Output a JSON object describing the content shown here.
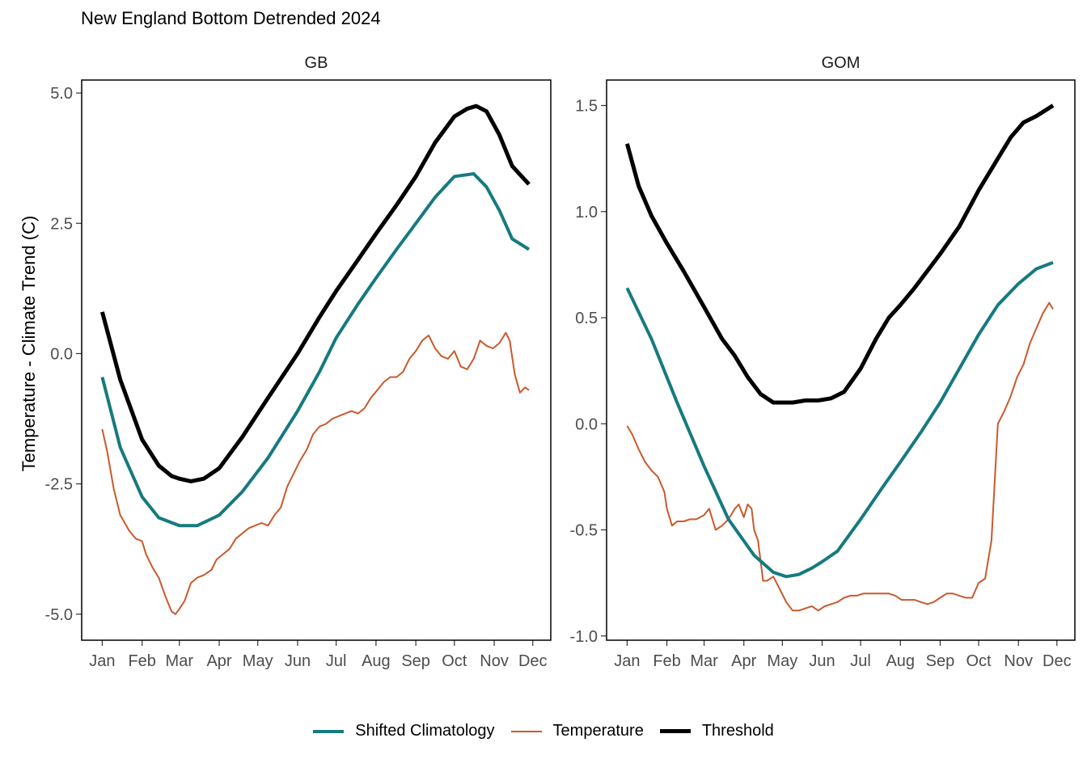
{
  "chart_data": {
    "type": "line",
    "title": "New England Bottom Detrended 2024",
    "ylabel": "Temperature - Climate Trend (C)",
    "xlabel": "",
    "x_tick_labels": [
      "Jan",
      "Feb",
      "Mar",
      "Apr",
      "May",
      "Jun",
      "Jul",
      "Aug",
      "Sep",
      "Oct",
      "Nov",
      "Dec"
    ],
    "x_tick_days": [
      1,
      32,
      61,
      92,
      122,
      153,
      183,
      214,
      245,
      275,
      306,
      336
    ],
    "xlim": [
      -15,
      350
    ],
    "legend_position": "bottom",
    "grid": false,
    "series_styles": [
      {
        "name": "Shifted Climatology",
        "color": "#167a7f",
        "width": 4
      },
      {
        "name": "Temperature",
        "color": "#c95a2c",
        "width": 2
      },
      {
        "name": "Threshold",
        "color": "#000000",
        "width": 5
      }
    ],
    "panels": [
      {
        "label": "GB",
        "ylim": [
          -5.5,
          5.25
        ],
        "y_ticks": [
          -5.0,
          -2.5,
          0.0,
          2.5,
          5.0
        ],
        "y_tick_labels": [
          "-5.0",
          "-2.5",
          "0.0",
          "2.5",
          "5.0"
        ],
        "series": [
          {
            "name": "Shifted Climatology",
            "x": [
              1,
              15,
              32,
              45,
              61,
              75,
              92,
              110,
              130,
              153,
              170,
              183,
              200,
              214,
              230,
              245,
              260,
              275,
              290,
              300,
              310,
              320,
              333
            ],
            "y": [
              -0.45,
              -1.8,
              -2.75,
              -3.15,
              -3.3,
              -3.3,
              -3.1,
              -2.65,
              -2.0,
              -1.1,
              -0.35,
              0.3,
              0.95,
              1.45,
              2.0,
              2.5,
              3.0,
              3.4,
              3.45,
              3.2,
              2.75,
              2.2,
              2.0
            ]
          },
          {
            "name": "Threshold",
            "x": [
              1,
              15,
              32,
              45,
              55,
              61,
              70,
              80,
              92,
              110,
              130,
              153,
              170,
              183,
              200,
              214,
              230,
              245,
              260,
              275,
              285,
              292,
              300,
              310,
              320,
              333
            ],
            "y": [
              0.8,
              -0.5,
              -1.65,
              -2.15,
              -2.35,
              -2.4,
              -2.45,
              -2.4,
              -2.2,
              -1.6,
              -0.85,
              0.0,
              0.7,
              1.2,
              1.8,
              2.3,
              2.85,
              3.4,
              4.05,
              4.55,
              4.7,
              4.75,
              4.65,
              4.2,
              3.6,
              3.25
            ]
          },
          {
            "name": "Temperature",
            "x": [
              1,
              5,
              10,
              15,
              22,
              27,
              32,
              35,
              40,
              45,
              50,
              55,
              58,
              61,
              65,
              70,
              75,
              80,
              86,
              90,
              95,
              100,
              105,
              110,
              115,
              120,
              125,
              130,
              135,
              140,
              145,
              150,
              155,
              160,
              165,
              170,
              175,
              180,
              185,
              190,
              195,
              200,
              205,
              210,
              215,
              220,
              225,
              230,
              235,
              240,
              245,
              250,
              255,
              260,
              265,
              270,
              275,
              280,
              285,
              290,
              295,
              300,
              305,
              310,
              315,
              318,
              322,
              326,
              330,
              333
            ],
            "y": [
              -1.45,
              -1.9,
              -2.6,
              -3.1,
              -3.4,
              -3.55,
              -3.6,
              -3.85,
              -4.1,
              -4.3,
              -4.65,
              -4.95,
              -5.0,
              -4.9,
              -4.75,
              -4.4,
              -4.3,
              -4.25,
              -4.15,
              -3.95,
              -3.85,
              -3.75,
              -3.55,
              -3.45,
              -3.35,
              -3.3,
              -3.25,
              -3.3,
              -3.1,
              -2.95,
              -2.55,
              -2.3,
              -2.05,
              -1.85,
              -1.55,
              -1.4,
              -1.35,
              -1.25,
              -1.2,
              -1.15,
              -1.1,
              -1.15,
              -1.05,
              -0.85,
              -0.7,
              -0.55,
              -0.45,
              -0.45,
              -0.35,
              -0.1,
              0.05,
              0.25,
              0.35,
              0.1,
              -0.05,
              -0.1,
              0.05,
              -0.25,
              -0.3,
              -0.1,
              0.25,
              0.15,
              0.1,
              0.2,
              0.4,
              0.25,
              -0.4,
              -0.75,
              -0.65,
              -0.7
            ]
          }
        ]
      },
      {
        "label": "GOM",
        "ylim": [
          -1.02,
          1.62
        ],
        "y_ticks": [
          -1.0,
          -0.5,
          0.0,
          0.5,
          1.0,
          1.5
        ],
        "y_tick_labels": [
          "-1.0",
          "-0.5",
          "0.0",
          "0.5",
          "1.0",
          "1.5"
        ],
        "series": [
          {
            "name": "Shifted Climatology",
            "x": [
              1,
              20,
              40,
              61,
              80,
              100,
              115,
              125,
              135,
              145,
              153,
              165,
              183,
              200,
              214,
              230,
              245,
              260,
              275,
              290,
              306,
              320,
              333
            ],
            "y": [
              0.64,
              0.4,
              0.1,
              -0.2,
              -0.45,
              -0.62,
              -0.7,
              -0.72,
              -0.71,
              -0.68,
              -0.65,
              -0.6,
              -0.45,
              -0.3,
              -0.18,
              -0.04,
              0.1,
              0.26,
              0.42,
              0.56,
              0.66,
              0.73,
              0.76
            ]
          },
          {
            "name": "Threshold",
            "x": [
              1,
              10,
              20,
              32,
              45,
              61,
              75,
              85,
              95,
              105,
              115,
              122,
              130,
              140,
              150,
              160,
              170,
              183,
              195,
              205,
              214,
              225,
              245,
              260,
              275,
              290,
              300,
              310,
              320,
              333
            ],
            "y": [
              1.32,
              1.12,
              0.98,
              0.85,
              0.72,
              0.55,
              0.4,
              0.32,
              0.22,
              0.14,
              0.1,
              0.1,
              0.1,
              0.11,
              0.11,
              0.12,
              0.15,
              0.26,
              0.4,
              0.5,
              0.56,
              0.64,
              0.8,
              0.93,
              1.1,
              1.25,
              1.35,
              1.42,
              1.45,
              1.5
            ]
          },
          {
            "name": "Temperature",
            "x": [
              1,
              5,
              10,
              15,
              20,
              25,
              30,
              32,
              36,
              40,
              45,
              50,
              55,
              61,
              65,
              70,
              75,
              80,
              85,
              88,
              92,
              95,
              98,
              100,
              103,
              107,
              110,
              115,
              120,
              125,
              130,
              135,
              140,
              145,
              150,
              155,
              160,
              165,
              170,
              175,
              180,
              185,
              190,
              195,
              200,
              205,
              210,
              215,
              220,
              225,
              230,
              235,
              240,
              245,
              250,
              255,
              260,
              265,
              270,
              275,
              280,
              285,
              290,
              295,
              300,
              305,
              310,
              315,
              320,
              325,
              330,
              333
            ],
            "y": [
              -0.01,
              -0.05,
              -0.12,
              -0.18,
              -0.22,
              -0.25,
              -0.32,
              -0.4,
              -0.48,
              -0.46,
              -0.46,
              -0.45,
              -0.45,
              -0.43,
              -0.4,
              -0.5,
              -0.48,
              -0.45,
              -0.4,
              -0.38,
              -0.44,
              -0.38,
              -0.4,
              -0.5,
              -0.55,
              -0.74,
              -0.74,
              -0.72,
              -0.78,
              -0.84,
              -0.88,
              -0.88,
              -0.87,
              -0.86,
              -0.88,
              -0.86,
              -0.85,
              -0.84,
              -0.82,
              -0.81,
              -0.81,
              -0.8,
              -0.8,
              -0.8,
              -0.8,
              -0.8,
              -0.81,
              -0.83,
              -0.83,
              -0.83,
              -0.84,
              -0.85,
              -0.84,
              -0.82,
              -0.8,
              -0.8,
              -0.81,
              -0.82,
              -0.82,
              -0.75,
              -0.73,
              -0.55,
              0.0,
              0.06,
              0.13,
              0.22,
              0.28,
              0.38,
              0.45,
              0.52,
              0.57,
              0.54
            ]
          }
        ]
      }
    ]
  }
}
